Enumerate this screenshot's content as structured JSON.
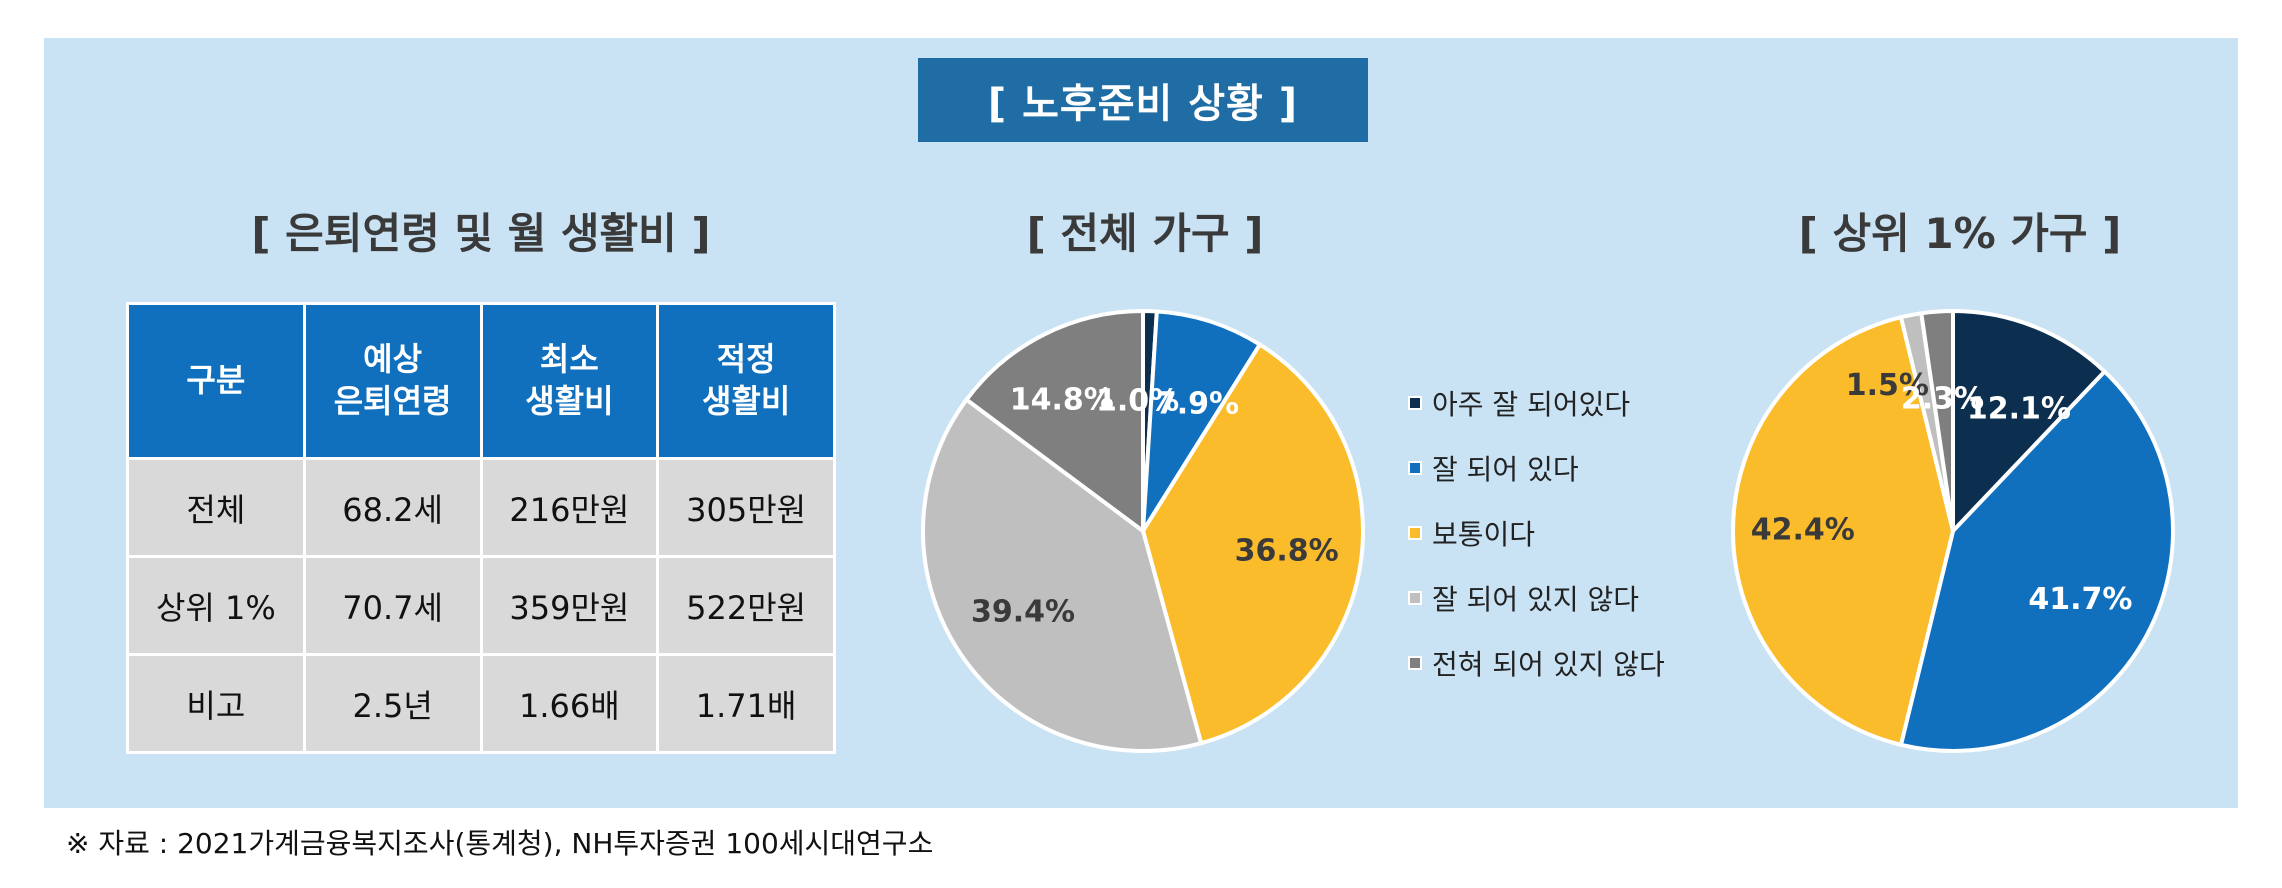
{
  "main_title": "[ 노후준비 상황 ]",
  "table_section": {
    "title": "[ 은퇴연령 및 월 생활비 ]",
    "headers": [
      {
        "line1": "구분",
        "line2": ""
      },
      {
        "line1": "예상",
        "line2": "은퇴연령"
      },
      {
        "line1": "최소",
        "line2": "생활비"
      },
      {
        "line1": "적정",
        "line2": "생활비"
      }
    ],
    "rows": [
      [
        "전체",
        "68.2세",
        "216만원",
        "305만원"
      ],
      [
        "상위 1%",
        "70.7세",
        "359만원",
        "522만원"
      ],
      [
        "비고",
        "2.5년",
        "1.66배",
        "1.71배"
      ]
    ]
  },
  "legend": [
    {
      "label": "아주 잘 되어있다",
      "color": "#0d2f4f"
    },
    {
      "label": "잘 되어 있다",
      "color": "#1070be"
    },
    {
      "label": "보통이다",
      "color": "#fbbc2b"
    },
    {
      "label": "잘 되어 있지 않다",
      "color": "#bfbfbf"
    },
    {
      "label": "전혀 되어 있지 않다",
      "color": "#7f7f7f"
    }
  ],
  "chart_data": [
    {
      "type": "pie",
      "title": "[ 전체 가구 ]",
      "categories": [
        "아주 잘 되어있다",
        "잘 되어 있다",
        "보통이다",
        "잘 되어 있지 않다",
        "전혀 되어 있지 않다"
      ],
      "values": [
        1.0,
        7.9,
        36.8,
        39.4,
        14.8
      ],
      "labels": [
        "1.0%",
        "7.9%",
        "36.8%",
        "39.4%",
        "14.8%"
      ],
      "label_colors": [
        "#ffffff",
        "#ffffff",
        "#3a3a3a",
        "#3a3a3a",
        "#ffffff"
      ]
    },
    {
      "type": "pie",
      "title": "[ 상위 1% 가구 ]",
      "categories": [
        "아주 잘 되어있다",
        "잘 되어 있다",
        "보통이다",
        "잘 되어 있지 않다",
        "전혀 되어 있지 않다"
      ],
      "values": [
        12.1,
        41.7,
        42.4,
        1.5,
        2.3
      ],
      "labels": [
        "12.1%",
        "41.7%",
        "42.4%",
        "1.5%",
        "2.3%"
      ],
      "label_colors": [
        "#ffffff",
        "#ffffff",
        "#3a3a3a",
        "#3a3a3a",
        "#ffffff"
      ]
    }
  ],
  "source_note": "※ 자료 : 2021가계금융복지조사(통계청), NH투자증권 100세시대연구소"
}
